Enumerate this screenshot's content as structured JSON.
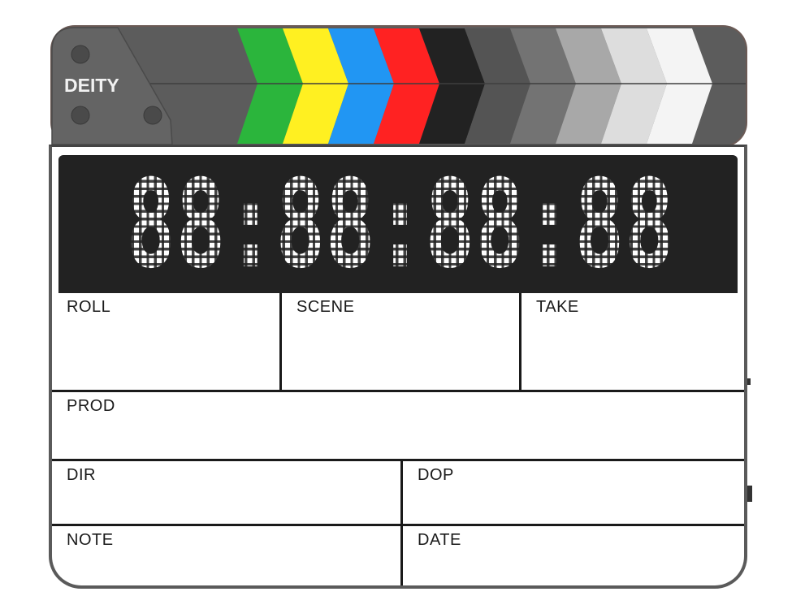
{
  "brand": "DEITY",
  "timecode": "88:88:88:88",
  "fields": {
    "roll": "ROLL",
    "scene": "SCENE",
    "take": "TAKE",
    "prod": "PROD",
    "dir": "DIR",
    "dop": "DOP",
    "note": "NOTE",
    "date": "DATE"
  },
  "colors": {
    "stripes": [
      "#2bb53c",
      "#fff021",
      "#2196f3",
      "#ff2222",
      "#222222",
      "#545454",
      "#737373",
      "#a8a8a8",
      "#dddddd",
      "#f4f4f4"
    ],
    "clapper_body": "#5c5c5c",
    "display_bg": "#222222",
    "led": "#ffffff"
  }
}
